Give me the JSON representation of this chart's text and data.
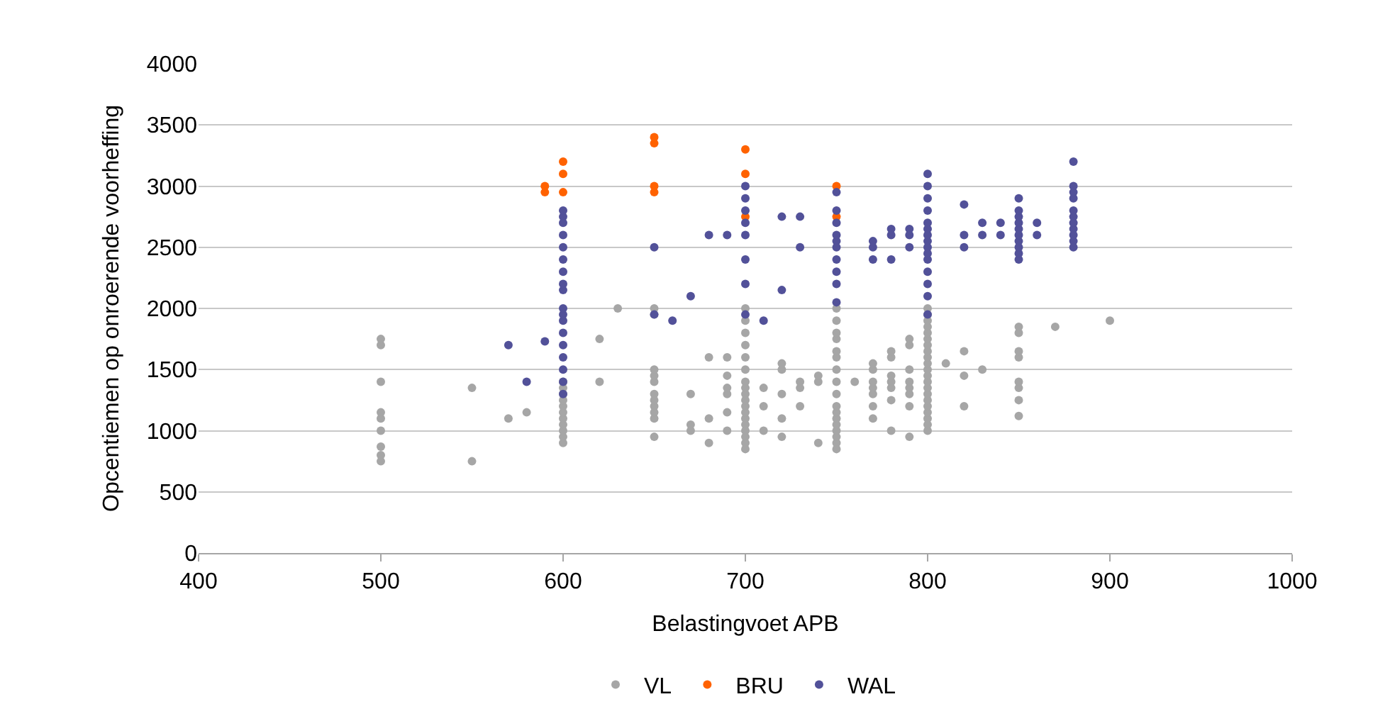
{
  "chart_data": {
    "type": "scatter",
    "xlabel": "Belastingvoet APB",
    "ylabel": "Opcentiemen op onroerende voorheffing",
    "xlim": [
      400,
      1000
    ],
    "xticks": [
      400,
      500,
      600,
      700,
      800,
      900,
      1000
    ],
    "ylim": [
      0,
      4000
    ],
    "yticks": [
      0,
      500,
      1000,
      1500,
      2000,
      2500,
      3000,
      3500,
      4000
    ],
    "grid": "y",
    "legend": "bottom",
    "marker": "circle",
    "series": [
      {
        "name": "VL",
        "color": "#a6a6a6",
        "x": [
          500,
          500,
          500,
          500,
          500,
          500,
          500,
          500,
          500,
          550,
          550,
          570,
          580,
          600,
          600,
          600,
          600,
          600,
          600,
          600,
          600,
          600,
          600,
          600,
          620,
          620,
          630,
          650,
          650,
          650,
          650,
          650,
          650,
          650,
          650,
          650,
          650,
          650,
          670,
          670,
          670,
          680,
          680,
          680,
          690,
          690,
          690,
          690,
          690,
          690,
          700,
          700,
          700,
          700,
          700,
          700,
          700,
          700,
          700,
          700,
          700,
          700,
          700,
          700,
          700,
          700,
          700,
          700,
          710,
          710,
          710,
          720,
          720,
          720,
          720,
          720,
          730,
          730,
          730,
          740,
          740,
          740,
          750,
          750,
          750,
          750,
          750,
          750,
          750,
          750,
          750,
          750,
          750,
          750,
          750,
          750,
          750,
          750,
          750,
          760,
          770,
          770,
          770,
          770,
          770,
          770,
          770,
          780,
          780,
          780,
          780,
          780,
          780,
          780,
          790,
          790,
          790,
          790,
          790,
          790,
          790,
          790,
          800,
          800,
          800,
          800,
          800,
          800,
          800,
          800,
          800,
          800,
          800,
          800,
          800,
          800,
          800,
          800,
          800,
          800,
          800,
          800,
          800,
          810,
          820,
          820,
          820,
          830,
          850,
          850,
          850,
          850,
          850,
          850,
          850,
          850,
          870,
          900
        ],
        "values": [
          750,
          800,
          870,
          1000,
          1100,
          1150,
          1400,
          1700,
          1750,
          750,
          1350,
          1100,
          1150,
          900,
          950,
          1000,
          1050,
          1100,
          1150,
          1200,
          1250,
          1300,
          1350,
          1400,
          1400,
          1750,
          2000,
          950,
          1100,
          1150,
          1200,
          1250,
          1300,
          1400,
          1450,
          1500,
          1950,
          2000,
          1000,
          1050,
          1300,
          900,
          1100,
          1600,
          1000,
          1150,
          1300,
          1350,
          1450,
          1600,
          850,
          900,
          950,
          1000,
          1050,
          1100,
          1150,
          1200,
          1250,
          1300,
          1350,
          1400,
          1500,
          1600,
          1700,
          1800,
          1900,
          2000,
          1000,
          1200,
          1350,
          950,
          1100,
          1300,
          1500,
          1550,
          1200,
          1350,
          1400,
          900,
          1400,
          1450,
          850,
          900,
          950,
          1000,
          1050,
          1100,
          1150,
          1200,
          1300,
          1400,
          1500,
          1600,
          1650,
          1750,
          1800,
          1900,
          2000,
          1400,
          1100,
          1200,
          1300,
          1350,
          1400,
          1500,
          1550,
          1000,
          1250,
          1350,
          1400,
          1450,
          1600,
          1650,
          950,
          1200,
          1300,
          1350,
          1400,
          1500,
          1700,
          1750,
          1000,
          1050,
          1100,
          1150,
          1200,
          1250,
          1300,
          1350,
          1400,
          1450,
          1500,
          1550,
          1600,
          1650,
          1700,
          1750,
          1800,
          1850,
          1900,
          1950,
          2000,
          1550,
          1200,
          1450,
          1650,
          1500,
          1120,
          1250,
          1350,
          1400,
          1600,
          1650,
          1800,
          1850,
          1850,
          1900
        ]
      },
      {
        "name": "BRU",
        "color": "#ff6200",
        "x": [
          590,
          590,
          600,
          600,
          600,
          650,
          650,
          650,
          650,
          700,
          700,
          700,
          750,
          750
        ],
        "values": [
          2950,
          3000,
          2950,
          3100,
          3200,
          2950,
          3000,
          3350,
          3400,
          2750,
          3100,
          3300,
          2750,
          3000
        ]
      },
      {
        "name": "WAL",
        "color": "#525199",
        "x": [
          570,
          580,
          590,
          600,
          600,
          600,
          600,
          600,
          600,
          600,
          600,
          600,
          600,
          600,
          600,
          600,
          600,
          600,
          600,
          600,
          600,
          650,
          650,
          660,
          670,
          680,
          690,
          700,
          700,
          700,
          700,
          700,
          700,
          700,
          700,
          710,
          720,
          720,
          730,
          730,
          750,
          750,
          750,
          750,
          750,
          750,
          750,
          750,
          750,
          750,
          770,
          770,
          770,
          780,
          780,
          780,
          790,
          790,
          790,
          800,
          800,
          800,
          800,
          800,
          800,
          800,
          800,
          800,
          800,
          800,
          800,
          800,
          800,
          800,
          820,
          820,
          820,
          830,
          830,
          840,
          840,
          850,
          850,
          850,
          850,
          850,
          850,
          850,
          850,
          850,
          850,
          860,
          860,
          880,
          880,
          880,
          880,
          880,
          880,
          880,
          880,
          880,
          880,
          880
        ],
        "values": [
          1700,
          1400,
          1730,
          1300,
          1400,
          1500,
          1600,
          1700,
          1800,
          1900,
          1950,
          2000,
          2150,
          2200,
          2300,
          2400,
          2500,
          2600,
          2700,
          2750,
          2800,
          1950,
          2500,
          1900,
          2100,
          2600,
          2600,
          1950,
          2200,
          2400,
          2600,
          2700,
          2800,
          2900,
          3000,
          1900,
          2150,
          2750,
          2500,
          2750,
          2050,
          2200,
          2300,
          2400,
          2500,
          2550,
          2600,
          2700,
          2800,
          2950,
          2400,
          2500,
          2550,
          2400,
          2600,
          2650,
          2500,
          2600,
          2650,
          1950,
          2100,
          2200,
          2300,
          2400,
          2450,
          2500,
          2550,
          2600,
          2650,
          2700,
          2800,
          2900,
          3000,
          3100,
          2500,
          2600,
          2850,
          2600,
          2700,
          2600,
          2700,
          2400,
          2450,
          2500,
          2550,
          2600,
          2650,
          2700,
          2750,
          2800,
          2900,
          2600,
          2700,
          2500,
          2550,
          2600,
          2650,
          2700,
          2750,
          2800,
          2900,
          2950,
          3000,
          3200
        ]
      }
    ]
  }
}
